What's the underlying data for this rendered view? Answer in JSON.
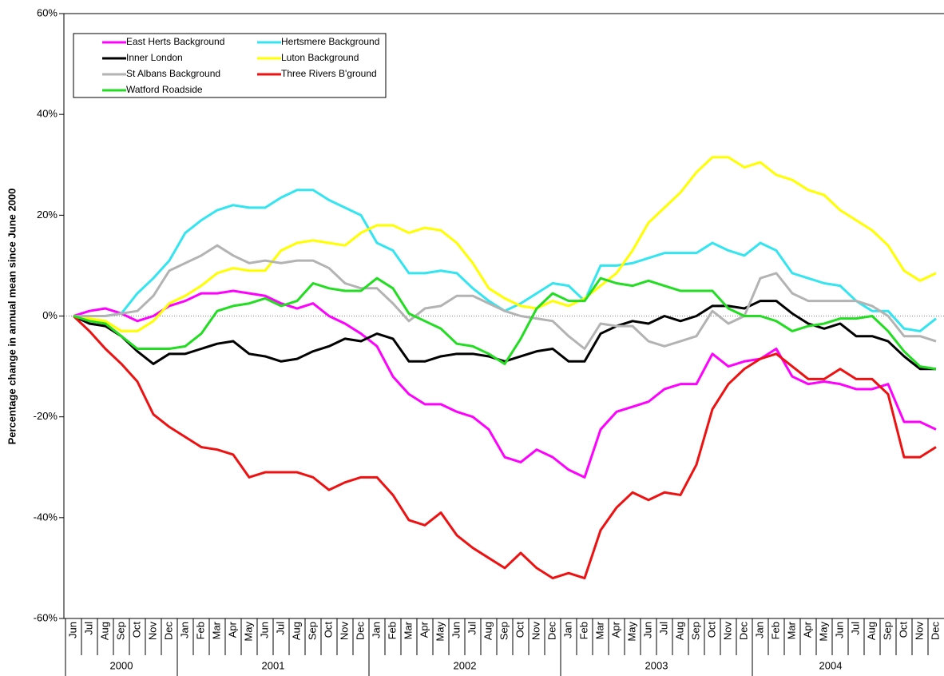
{
  "chart_data": {
    "type": "line",
    "y_label": "Percentage change in annual mean since June 2000",
    "categories": [
      "Jun",
      "Jul",
      "Aug",
      "Sep",
      "Oct",
      "Nov",
      "Dec",
      "Jan",
      "Feb",
      "Mar",
      "Apr",
      "May",
      "Jun",
      "Jul",
      "Aug",
      "Sep",
      "Oct",
      "Nov",
      "Dec",
      "Jan",
      "Feb",
      "Mar",
      "Apr",
      "May",
      "Jun",
      "Jul",
      "Aug",
      "Sep",
      "Oct",
      "Nov",
      "Dec",
      "Jan",
      "Feb",
      "Mar",
      "Apr",
      "May",
      "Jun",
      "Jul",
      "Aug",
      "Sep",
      "Oct",
      "Nov",
      "Dec",
      "Jan",
      "Feb",
      "Mar",
      "Apr",
      "May",
      "Jun",
      "Jul",
      "Aug",
      "Sep",
      "Oct",
      "Nov",
      "Dec"
    ],
    "x_groups": [
      "2000",
      "2001",
      "2002",
      "2003",
      "2004"
    ],
    "ylim": [
      -60,
      60
    ],
    "yticks": [
      {
        "value": -60,
        "label": "-60%"
      },
      {
        "value": -40,
        "label": "-40%"
      },
      {
        "value": -20,
        "label": "-20%"
      },
      {
        "value": 0,
        "label": "0%"
      },
      {
        "value": 20,
        "label": "20%"
      },
      {
        "value": 40,
        "label": "40%"
      },
      {
        "value": 60,
        "label": "60%"
      }
    ],
    "legend": "upper left",
    "series": [
      {
        "name": "East Herts Background",
        "color": "#ff00ff",
        "values": [
          0,
          1,
          1.5,
          0.5,
          -1,
          0,
          2,
          3,
          4.5,
          4.5,
          5,
          4.5,
          4,
          2.5,
          1.5,
          2.5,
          0,
          -1.5,
          -3.5,
          -6,
          -12,
          -15.5,
          -17.5,
          -17.5,
          -19,
          -20,
          -22.5,
          -28,
          -29,
          -26.5,
          -28,
          -30.5,
          -32,
          -22.5,
          -19,
          -18,
          -17,
          -14.5,
          -13.5,
          -13.5,
          -7.5,
          -10,
          -9,
          -8.5,
          -6.5,
          -12,
          -13.5,
          -13,
          -13.5,
          -14.5,
          -14.5,
          -13.5,
          -21,
          -21,
          -22.5
        ]
      },
      {
        "name": "Hertsmere Background",
        "color": "#33e5f0",
        "values": [
          0,
          0,
          0,
          0.5,
          4.5,
          7.5,
          11,
          16.5,
          19,
          21,
          22,
          21.5,
          21.5,
          23.5,
          25,
          25,
          23,
          21.5,
          20,
          14.5,
          13,
          8.5,
          8.5,
          9,
          8.5,
          5.5,
          3,
          1,
          2.5,
          4.5,
          6.5,
          6,
          3,
          10,
          10,
          10.5,
          11.5,
          12.5,
          12.5,
          12.5,
          14.5,
          13,
          12,
          14.5,
          13,
          8.5,
          7.5,
          6.5,
          6,
          3,
          1,
          1,
          -2.5,
          -3,
          -0.5
        ]
      },
      {
        "name": "Inner London",
        "color": "#000000",
        "values": [
          0,
          -1.5,
          -2,
          -4,
          -7,
          -9.5,
          -7.5,
          -7.5,
          -6.5,
          -5.5,
          -5,
          -7.5,
          -8,
          -9,
          -8.5,
          -7,
          -6,
          -4.5,
          -5,
          -3.5,
          -4.5,
          -9,
          -9,
          -8,
          -7.5,
          -7.5,
          -8,
          -9,
          -8,
          -7,
          -6.5,
          -9,
          -9,
          -3.5,
          -2,
          -1,
          -1.5,
          0,
          -1,
          0,
          2,
          2,
          1.5,
          3,
          3,
          0.5,
          -1.5,
          -2.5,
          -1.5,
          -4,
          -4,
          -5,
          -8,
          -10.5,
          -10.5
        ]
      },
      {
        "name": "Luton Background",
        "color": "#ffff00",
        "values": [
          0,
          -0.5,
          -1,
          -3,
          -3,
          -1,
          2.5,
          4,
          6,
          8.5,
          9.5,
          9,
          9,
          13,
          14.5,
          15,
          14.5,
          14,
          16.5,
          18,
          18,
          16.5,
          17.5,
          17,
          14.5,
          10.5,
          5.5,
          3.5,
          2,
          1.5,
          3,
          2,
          3.5,
          6,
          8.5,
          13,
          18.5,
          21.5,
          24.5,
          28.5,
          31.5,
          31.5,
          29.5,
          30.5,
          28,
          27,
          25,
          24,
          21,
          19,
          17,
          14,
          9,
          7,
          8.5
        ]
      },
      {
        "name": "St Albans Background",
        "color": "#b3b3b3",
        "values": [
          0,
          0,
          0,
          0.5,
          1,
          4,
          9,
          10.5,
          12,
          14,
          12,
          10.5,
          11,
          10.5,
          11,
          11,
          9.5,
          6.5,
          5.5,
          5.5,
          2.5,
          -1,
          1.5,
          2,
          4,
          4,
          2.5,
          1,
          0,
          -0.5,
          -1,
          -4,
          -6.5,
          -1.5,
          -2,
          -2,
          -5,
          -6,
          -5,
          -4,
          1,
          -1.5,
          0,
          7.5,
          8.5,
          4.5,
          3,
          3,
          3,
          3,
          2,
          0,
          -4,
          -4,
          -5
        ]
      },
      {
        "name": "Three Rivers B'ground",
        "color": "#ee1111",
        "values": [
          0,
          -3,
          -6.5,
          -9.5,
          -13,
          -19.5,
          -22,
          -24,
          -26,
          -26.5,
          -27.5,
          -32,
          -31,
          -31,
          -31,
          -32,
          -34.5,
          -33,
          -32,
          -32,
          -35.5,
          -40.5,
          -41.5,
          -39,
          -43.5,
          -46,
          -48,
          -50,
          -47,
          -50,
          -52,
          -51,
          -52,
          -42.5,
          -38,
          -35,
          -36.5,
          -35,
          -35.5,
          -29.5,
          -18.5,
          -13.5,
          -10.5,
          -8.5,
          -7.5,
          -10,
          -12.5,
          -12.5,
          -10.5,
          -12.5,
          -12.5,
          -15.5,
          -28,
          -28,
          -26
        ]
      },
      {
        "name": "Watford Roadside",
        "color": "#22dd22",
        "values": [
          0,
          -1,
          -1.5,
          -4,
          -6.5,
          -6.5,
          -6.5,
          -6,
          -3.5,
          1,
          2,
          2.5,
          3.5,
          2,
          3,
          6.5,
          5.5,
          5,
          5,
          7.5,
          5.5,
          0.5,
          -1,
          -2.5,
          -5.5,
          -6,
          -7.5,
          -9.5,
          -4.5,
          1.5,
          4.5,
          3,
          3,
          7.5,
          6.5,
          6,
          7,
          6,
          5,
          5,
          5,
          1.5,
          0,
          0,
          -1,
          -3,
          -2,
          -1.5,
          -0.5,
          -0.5,
          0,
          -3,
          -7,
          -10,
          -10.5
        ]
      }
    ]
  }
}
